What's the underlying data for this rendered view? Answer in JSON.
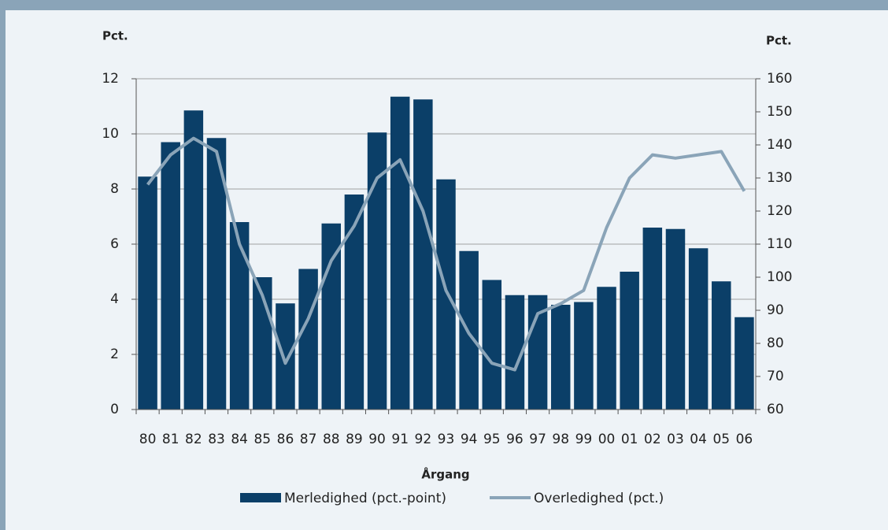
{
  "chart_data": {
    "type": "bar_line",
    "y_label": "Pct.",
    "y2_label": "Pct.",
    "x_label": "Årgang",
    "categories": [
      "80",
      "81",
      "82",
      "83",
      "84",
      "85",
      "86",
      "87",
      "88",
      "89",
      "90",
      "91",
      "92",
      "93",
      "94",
      "95",
      "96",
      "97",
      "98",
      "99",
      "00",
      "01",
      "02",
      "03",
      "04",
      "05",
      "06"
    ],
    "series": [
      {
        "name": "Merledighed (pct.-point)",
        "type": "bar",
        "color": "#0b3f68",
        "values": [
          8.45,
          9.7,
          10.85,
          9.85,
          6.8,
          4.8,
          3.85,
          5.1,
          6.75,
          7.8,
          10.05,
          11.35,
          11.25,
          8.35,
          5.75,
          4.7,
          4.15,
          4.15,
          3.8,
          3.9,
          4.45,
          5.0,
          6.6,
          6.55,
          5.85,
          4.65,
          3.35
        ]
      },
      {
        "name": "Overledighed (pct.)",
        "type": "line",
        "axis": "y2",
        "color": "#8aa4b8",
        "values": [
          128,
          137,
          142,
          138,
          110,
          94.5,
          74,
          87.5,
          105,
          115.5,
          130,
          135.5,
          120,
          96,
          83,
          74,
          72,
          89,
          92,
          96,
          115,
          130,
          137,
          136,
          137,
          138,
          126
        ]
      }
    ],
    "ylim": [
      0,
      12
    ],
    "yticks": [
      0,
      2,
      4,
      6,
      8,
      10,
      12
    ],
    "y2lim": [
      60,
      160
    ],
    "y2ticks": [
      60,
      70,
      80,
      90,
      100,
      110,
      120,
      130,
      140,
      150,
      160
    ],
    "grid": true
  }
}
